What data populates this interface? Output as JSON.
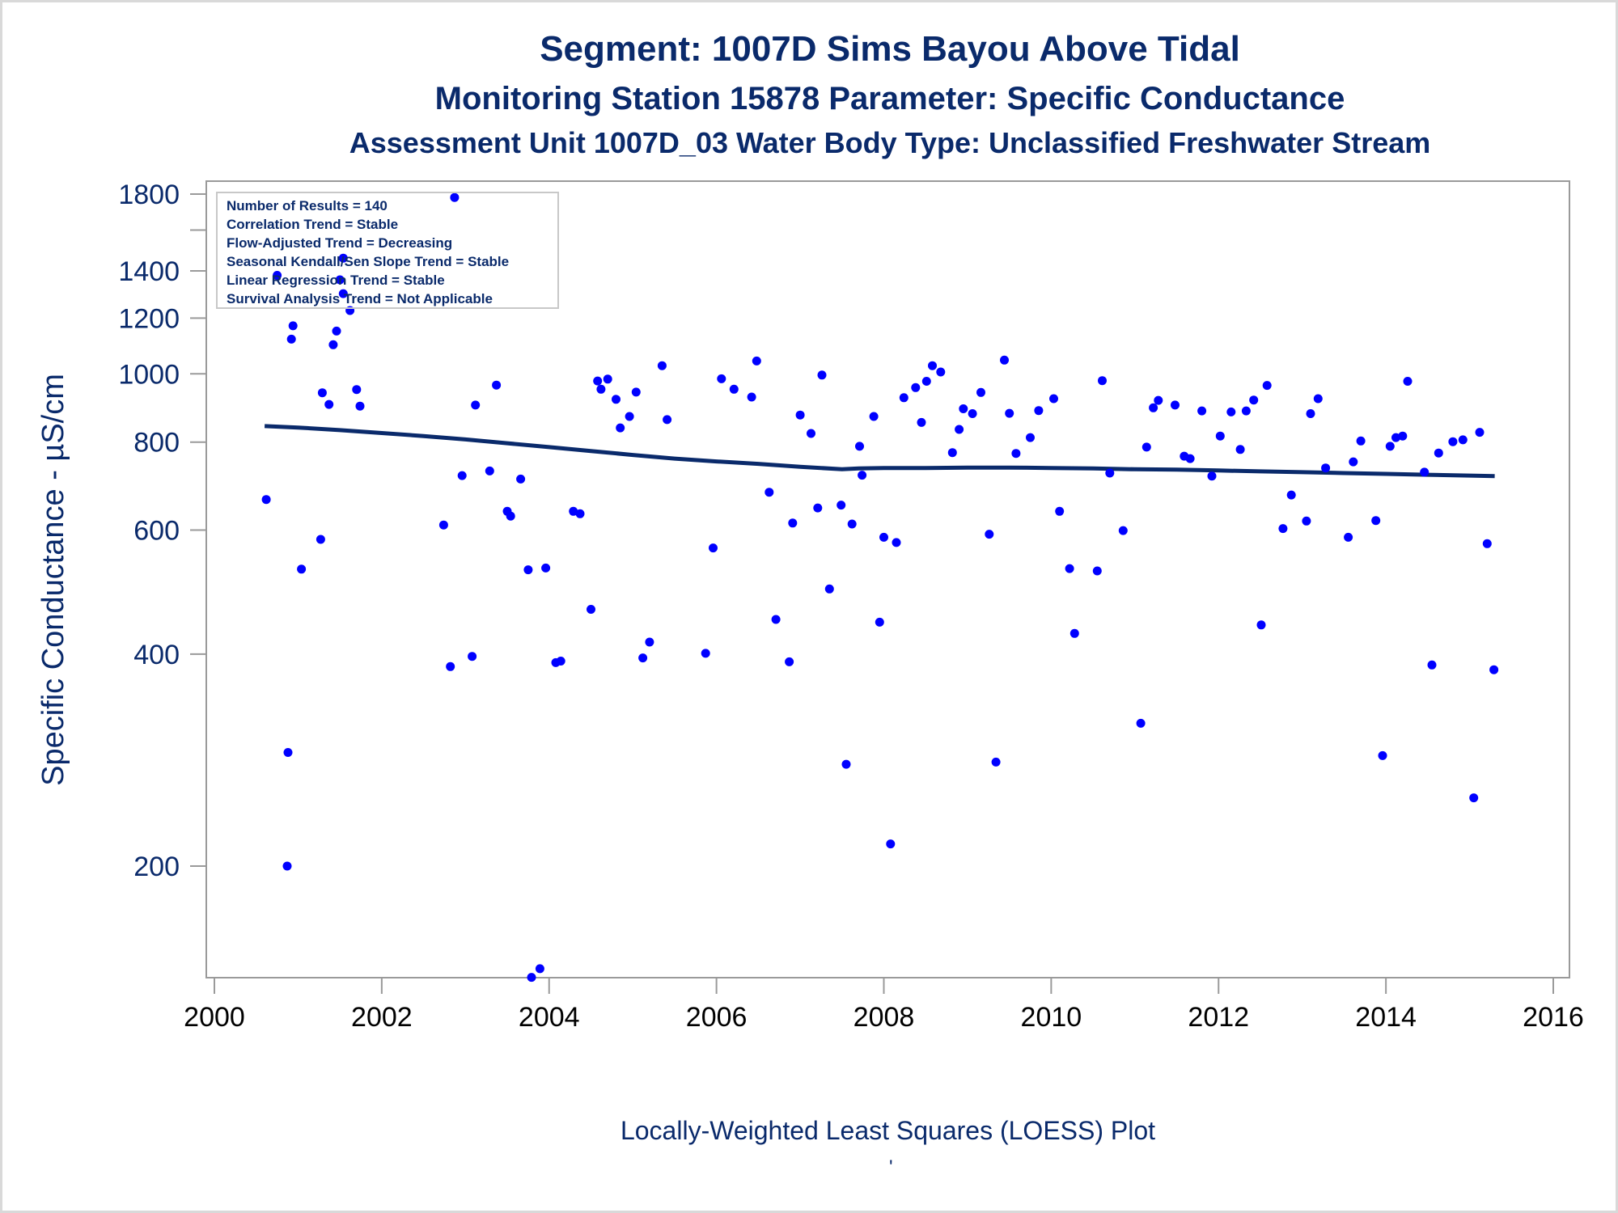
{
  "titles": {
    "line1": "Segment: 1007D  Sims Bayou Above Tidal",
    "line2": "Monitoring Station 15878 Parameter: Specific Conductance",
    "line3": "Assessment Unit 1007D_03   Water Body Type: Unclassified Freshwater Stream"
  },
  "footnote": "Locally-Weighted Least Squares (LOESS) Plot",
  "footnote_mark": "'",
  "colors": {
    "text": "#0a2a6b",
    "points": "#0000ff",
    "line": "#0a2a6b",
    "axis": "#9a9a9a"
  },
  "chart_data": {
    "type": "scatter",
    "ylabel": "Specific Conductance -  µS/cm",
    "xlim": [
      2000,
      2016
    ],
    "ylim_log": [
      160,
      1880
    ],
    "y_scale": "log",
    "xticks": [
      "2000",
      "2002",
      "2004",
      "2006",
      "2008",
      "2010",
      "2012",
      "2014",
      "2016"
    ],
    "yticks": [
      "200",
      "400",
      "600",
      "800",
      "1000",
      "1200",
      "1400",
      "1800"
    ],
    "legend_placement": "top-left",
    "annotations": [
      "Number of Results = 140",
      "Correlation Trend = Stable",
      "Flow-Adjusted Trend = Decreasing",
      "Seasonal Kendall/Sen Slope Trend = Stable",
      "Linear Regression Trend = Stable",
      "Survival Analysis Trend = Not Applicable"
    ],
    "points": [
      [
        2000.62,
        663
      ],
      [
        2000.75,
        1380
      ],
      [
        2000.87,
        200
      ],
      [
        2000.88,
        290
      ],
      [
        2000.92,
        1120
      ],
      [
        2000.94,
        1170
      ],
      [
        2001.04,
        528
      ],
      [
        2001.29,
        940
      ],
      [
        2001.37,
        905
      ],
      [
        2001.42,
        1100
      ],
      [
        2001.46,
        1150
      ],
      [
        2001.5,
        1360
      ],
      [
        2001.54,
        1300
      ],
      [
        2001.54,
        1460
      ],
      [
        2001.62,
        1230
      ],
      [
        2001.7,
        950
      ],
      [
        2001.74,
        900
      ],
      [
        2001.27,
        582
      ],
      [
        2002.74,
        610
      ],
      [
        2002.82,
        384
      ],
      [
        2002.87,
        1780
      ],
      [
        2002.96,
        717
      ],
      [
        2003.08,
        397
      ],
      [
        2003.12,
        903
      ],
      [
        2003.29,
        728
      ],
      [
        2003.37,
        964
      ],
      [
        2003.5,
        638
      ],
      [
        2003.54,
        628
      ],
      [
        2003.66,
        709
      ],
      [
        2003.75,
        527
      ],
      [
        2003.79,
        139
      ],
      [
        2003.89,
        143
      ],
      [
        2003.96,
        530
      ],
      [
        2004.08,
        389
      ],
      [
        2004.14,
        391
      ],
      [
        2004.29,
        638
      ],
      [
        2004.37,
        633
      ],
      [
        2004.5,
        463
      ],
      [
        2004.58,
        977
      ],
      [
        2004.62,
        951
      ],
      [
        2004.7,
        983
      ],
      [
        2004.8,
        920
      ],
      [
        2004.85,
        838
      ],
      [
        2004.96,
        870
      ],
      [
        2005.04,
        942
      ],
      [
        2005.12,
        395
      ],
      [
        2005.2,
        416
      ],
      [
        2005.35,
        1027
      ],
      [
        2005.41,
        861
      ],
      [
        2005.87,
        401
      ],
      [
        2005.96,
        566
      ],
      [
        2006.06,
        984
      ],
      [
        2006.21,
        951
      ],
      [
        2006.42,
        927
      ],
      [
        2006.48,
        1043
      ],
      [
        2006.63,
        679
      ],
      [
        2006.71,
        448
      ],
      [
        2006.87,
        390
      ],
      [
        2006.91,
        614
      ],
      [
        2007,
        874
      ],
      [
        2007.13,
        823
      ],
      [
        2007.21,
        645
      ],
      [
        2007.26,
        996
      ],
      [
        2007.35,
        495
      ],
      [
        2007.49,
        651
      ],
      [
        2007.55,
        279
      ],
      [
        2007.62,
        612
      ],
      [
        2007.71,
        789
      ],
      [
        2007.74,
        718
      ],
      [
        2007.88,
        870
      ],
      [
        2007.95,
        444
      ],
      [
        2008,
        586
      ],
      [
        2008.08,
        215
      ],
      [
        2008.15,
        576
      ],
      [
        2008.24,
        925
      ],
      [
        2008.38,
        956
      ],
      [
        2008.45,
        853
      ],
      [
        2008.51,
        976
      ],
      [
        2008.58,
        1027
      ],
      [
        2008.68,
        1006
      ],
      [
        2008.82,
        773
      ],
      [
        2008.9,
        834
      ],
      [
        2008.95,
        892
      ],
      [
        2009.06,
        878
      ],
      [
        2009.16,
        941
      ],
      [
        2009.26,
        592
      ],
      [
        2009.34,
        281
      ],
      [
        2009.44,
        1046
      ],
      [
        2009.5,
        879
      ],
      [
        2009.58,
        771
      ],
      [
        2009.75,
        812
      ],
      [
        2009.85,
        887
      ],
      [
        2010.03,
        922
      ],
      [
        2010.1,
        638
      ],
      [
        2010.22,
        529
      ],
      [
        2010.28,
        428
      ],
      [
        2010.55,
        525
      ],
      [
        2010.61,
        978
      ],
      [
        2010.7,
        723
      ],
      [
        2010.86,
        599
      ],
      [
        2011.07,
        319
      ],
      [
        2011.14,
        787
      ],
      [
        2011.22,
        895
      ],
      [
        2011.28,
        917
      ],
      [
        2011.48,
        903
      ],
      [
        2011.59,
        764
      ],
      [
        2011.66,
        758
      ],
      [
        2011.8,
        886
      ],
      [
        2011.92,
        716
      ],
      [
        2012.02,
        816
      ],
      [
        2012.15,
        883
      ],
      [
        2012.26,
        781
      ],
      [
        2012.33,
        886
      ],
      [
        2012.42,
        918
      ],
      [
        2012.51,
        440
      ],
      [
        2012.58,
        963
      ],
      [
        2012.77,
        603
      ],
      [
        2012.87,
        673
      ],
      [
        2013.05,
        618
      ],
      [
        2013.1,
        878
      ],
      [
        2013.19,
        922
      ],
      [
        2013.28,
        735
      ],
      [
        2013.55,
        586
      ],
      [
        2013.61,
        750
      ],
      [
        2013.7,
        803
      ],
      [
        2013.88,
        619
      ],
      [
        2013.96,
        287
      ],
      [
        2014.05,
        789
      ],
      [
        2014.12,
        812
      ],
      [
        2014.2,
        816
      ],
      [
        2014.26,
        976
      ],
      [
        2014.46,
        725
      ],
      [
        2014.55,
        386
      ],
      [
        2014.63,
        772
      ],
      [
        2014.8,
        801
      ],
      [
        2014.92,
        806
      ],
      [
        2015.05,
        250
      ],
      [
        2015.12,
        826
      ],
      [
        2015.21,
        574
      ],
      [
        2015.29,
        380
      ]
    ],
    "loess": [
      [
        2000.6,
        843
      ],
      [
        2001,
        839
      ],
      [
        2001.5,
        832
      ],
      [
        2002,
        824
      ],
      [
        2002.5,
        816
      ],
      [
        2003,
        807
      ],
      [
        2003.5,
        797
      ],
      [
        2004,
        787
      ],
      [
        2004.5,
        777
      ],
      [
        2005,
        767
      ],
      [
        2005.5,
        758
      ],
      [
        2006,
        751
      ],
      [
        2006.5,
        745
      ],
      [
        2007,
        738
      ],
      [
        2007.5,
        732
      ],
      [
        2007.7,
        734
      ],
      [
        2008,
        735
      ],
      [
        2008.5,
        735
      ],
      [
        2009,
        736
      ],
      [
        2009.5,
        736
      ],
      [
        2010,
        735
      ],
      [
        2010.5,
        734
      ],
      [
        2011,
        732
      ],
      [
        2011.5,
        731
      ],
      [
        2012,
        729
      ],
      [
        2012.5,
        727
      ],
      [
        2013,
        725
      ],
      [
        2013.5,
        723
      ],
      [
        2014,
        721
      ],
      [
        2014.5,
        719
      ],
      [
        2015,
        717
      ],
      [
        2015.3,
        716
      ]
    ]
  }
}
